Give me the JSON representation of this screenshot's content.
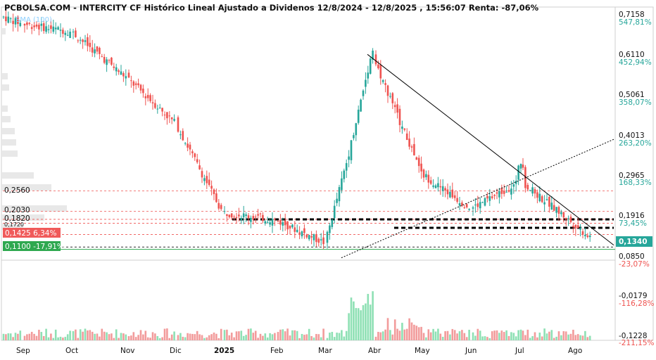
{
  "header": {
    "title": "PCBOLSA.COM - INTERCITY CF Histórico Lineal Ajustado a Dividenos 12/8/2024 - 12/8/2025 , 15:56:07 Renta: -87,06%",
    "sma_label": "SMA (100)"
  },
  "colors": {
    "up": "#26a69a",
    "down": "#ef5350",
    "volume_up": "#8ee0b4",
    "volume_down": "#f29b9b",
    "pct_positive": "#26a69a",
    "pct_negative": "#ef5350",
    "price_label_bg": "#26a69a",
    "badge_red": "#f05a5a",
    "badge_green": "#2ea84f",
    "volume_profile": "#e8e8e8"
  },
  "chart_data": {
    "type": "candlestick",
    "title": "PCBOLSA.COM - INTERCITY CF Histórico Lineal Ajustado a Dividenos 12/8/2024 - 12/8/2025 , 15:56:07 Renta: -87,06%",
    "x_tick_labels": [
      "Sep",
      "Oct",
      "Nov",
      "Dic",
      "2025",
      "Feb",
      "Mar",
      "Abr",
      "May",
      "Jun",
      "Jul",
      "Ago"
    ],
    "y_axis": {
      "price_labels": [
        "0,7158",
        "0,6110",
        "0,5061",
        "0,4013",
        "0,2965",
        "0,1916",
        "0,0850",
        "-0,0179",
        "-0,1228"
      ],
      "pct_labels": [
        "547,81%",
        "452,94%",
        "358,07%",
        "263,20%",
        "168,33%",
        "73,45%",
        "-23,07%",
        "-116,28%",
        "-211,15%"
      ],
      "current_price": "0,1340"
    },
    "level_labels": [
      "0,2560",
      "0,2030",
      "0,1820",
      "0,1720"
    ],
    "badges": [
      {
        "text": "0,1425  6,34%",
        "tone": "red"
      },
      {
        "text": "0,1100  -17,91%",
        "tone": "green"
      }
    ],
    "price_series_approx": {
      "months": [
        "Ago",
        "Sep",
        "Oct",
        "Nov",
        "Dic",
        "2025",
        "Feb",
        "Mar",
        "Abr",
        "May",
        "Jun",
        "Jul",
        "Ago"
      ],
      "close": [
        0.71,
        0.69,
        0.67,
        0.55,
        0.43,
        0.2,
        0.18,
        0.12,
        0.6,
        0.3,
        0.21,
        0.28,
        0.134
      ]
    },
    "annotations": {
      "downtrend_line_from": {
        "date": "Abr",
        "price": 0.611
      },
      "uptrend_line_from": {
        "date": "Mar",
        "price": 0.085
      },
      "dashed_support_levels": [
        0.182,
        0.16
      ],
      "horizontal_reference_lines": [
        0.256,
        0.203,
        0.182,
        0.172,
        0.1425,
        0.11
      ]
    },
    "grid": false
  }
}
